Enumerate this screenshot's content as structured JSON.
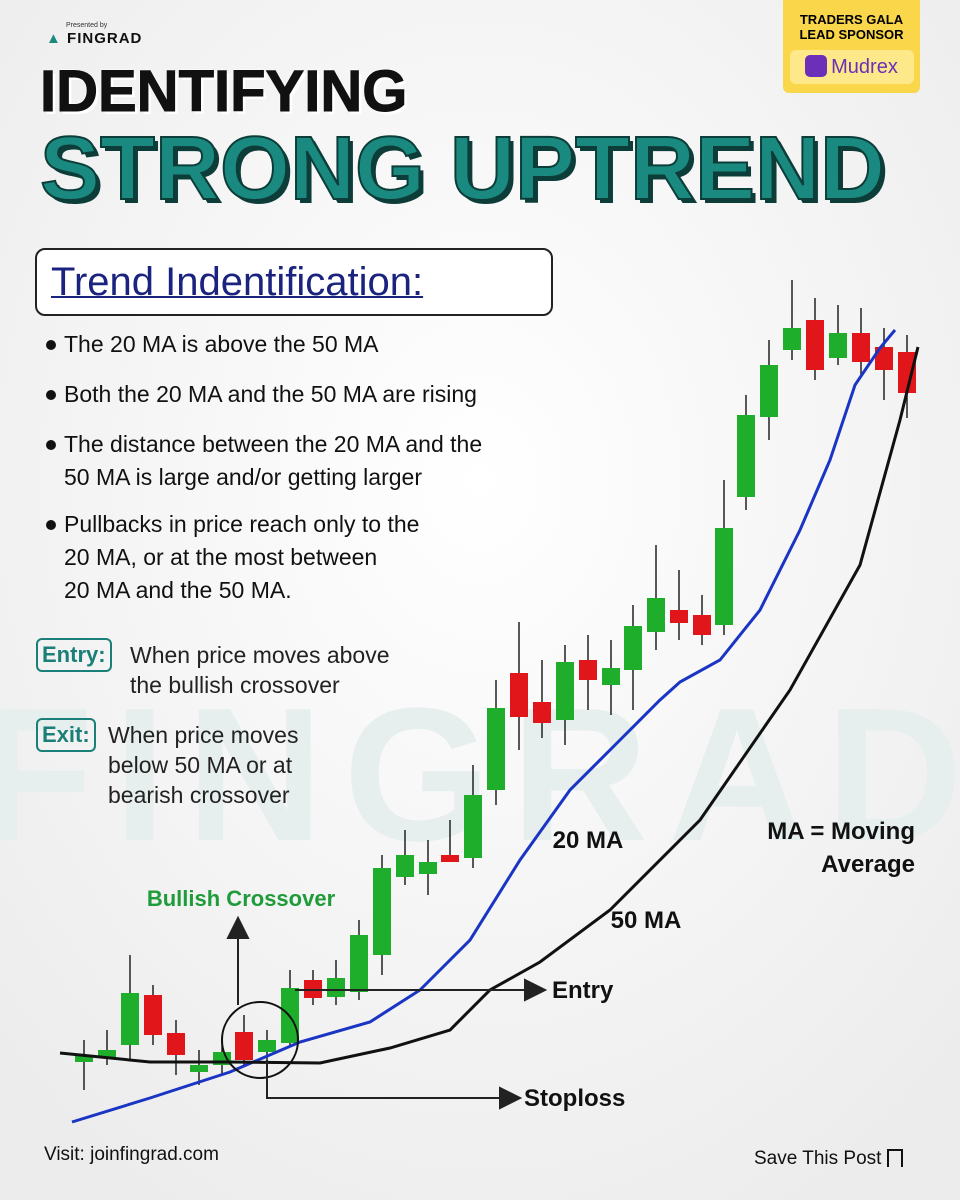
{
  "header": {
    "presented_by": "Presented by",
    "brand": "FINGRAD",
    "sponsor": {
      "line1": "TRADERS GALA",
      "line2": "LEAD SPONSOR",
      "name": "Mudrex"
    }
  },
  "title": {
    "line1": "IDENTIFYING",
    "line2": "STRONG UPTREND"
  },
  "section": {
    "heading": "Trend Indentification:",
    "bullets": [
      [
        "The 20 MA is above the 50 MA"
      ],
      [
        "Both the 20 MA and the 50 MA are rising"
      ],
      [
        "The distance between the 20 MA and the",
        "50 MA is large and/or getting larger"
      ],
      [
        "Pullbacks in price reach only to the",
        "20 MA, or at the most between",
        "20 MA and the 50 MA."
      ]
    ]
  },
  "rules": [
    {
      "label": "Entry:",
      "lines": [
        "When price moves above",
        "the bullish crossover"
      ]
    },
    {
      "label": "Exit:",
      "lines": [
        "When price moves",
        "below 50 MA or at",
        "bearish crossover"
      ]
    }
  ],
  "chart": {
    "crossover": "Bullish Crossover",
    "ma20": "20 MA",
    "ma50": "50 MA",
    "legend": [
      "MA = Moving",
      "Average"
    ],
    "entry": "Entry",
    "stoploss": "Stoploss"
  },
  "watermark": "FINGRAD",
  "footer": {
    "visit": "Visit: joinfingrad.com",
    "save": "Save This Post"
  }
}
